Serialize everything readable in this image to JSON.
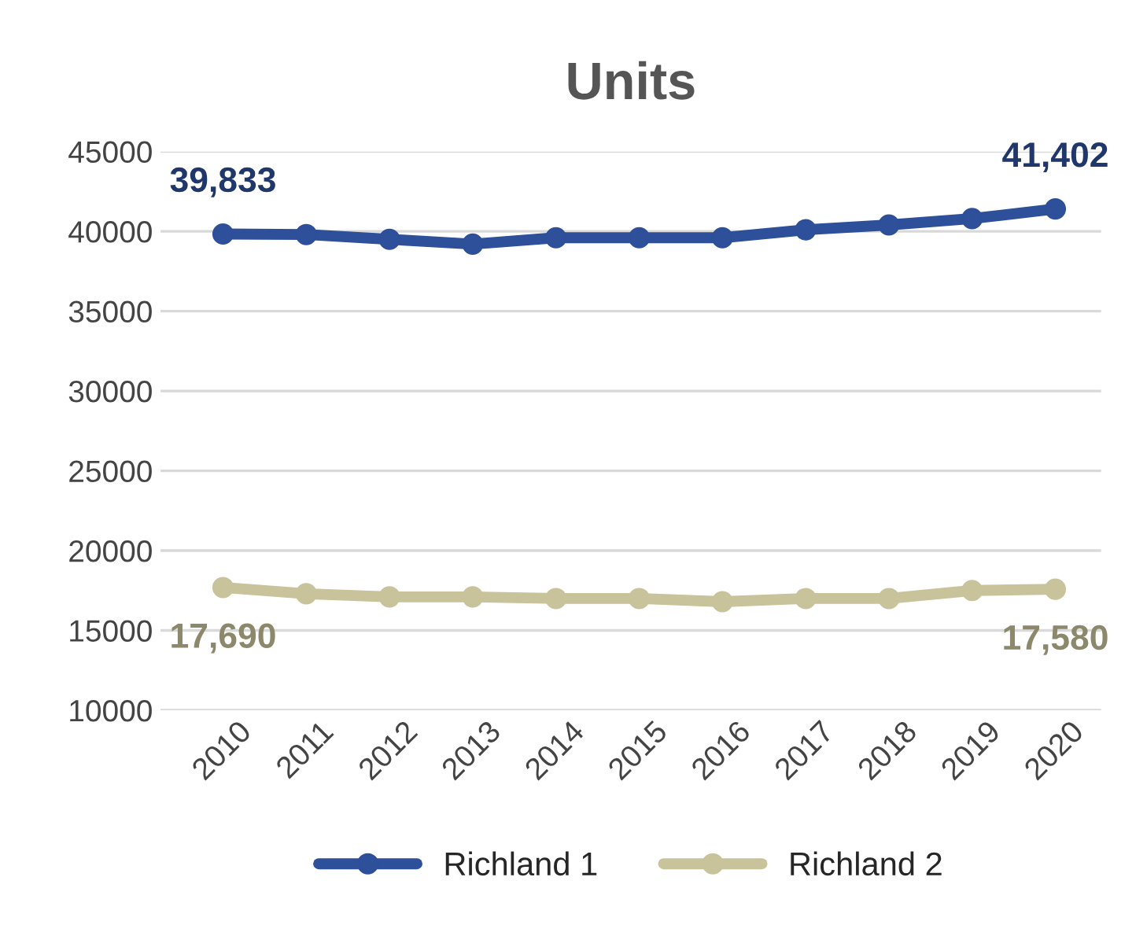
{
  "chart_data": {
    "type": "line",
    "title": "Units",
    "categories": [
      "2010",
      "2011",
      "2012",
      "2013",
      "2014",
      "2015",
      "2016",
      "2017",
      "2018",
      "2019",
      "2020"
    ],
    "series": [
      {
        "name": "Richland 1",
        "color": "#2e4f99",
        "values": [
          39833,
          39800,
          39500,
          39200,
          39600,
          39600,
          39600,
          40100,
          40400,
          40800,
          41402
        ],
        "value_labels": [
          "39,833",
          null,
          null,
          null,
          null,
          null,
          null,
          null,
          null,
          null,
          "41,402"
        ]
      },
      {
        "name": "Richland 2",
        "color": "#c8c39a",
        "values": [
          17690,
          17300,
          17100,
          17100,
          17000,
          17000,
          16800,
          17000,
          17000,
          17500,
          17580
        ],
        "value_labels": [
          "17,690",
          null,
          null,
          null,
          null,
          null,
          null,
          null,
          null,
          null,
          "17,580"
        ]
      }
    ],
    "ylim": [
      10000,
      45000
    ],
    "yticks": [
      10000,
      15000,
      20000,
      25000,
      30000,
      35000,
      40000,
      45000
    ],
    "grid": "y",
    "legend": "bottom",
    "marker": "circle",
    "line_style": "solid"
  }
}
